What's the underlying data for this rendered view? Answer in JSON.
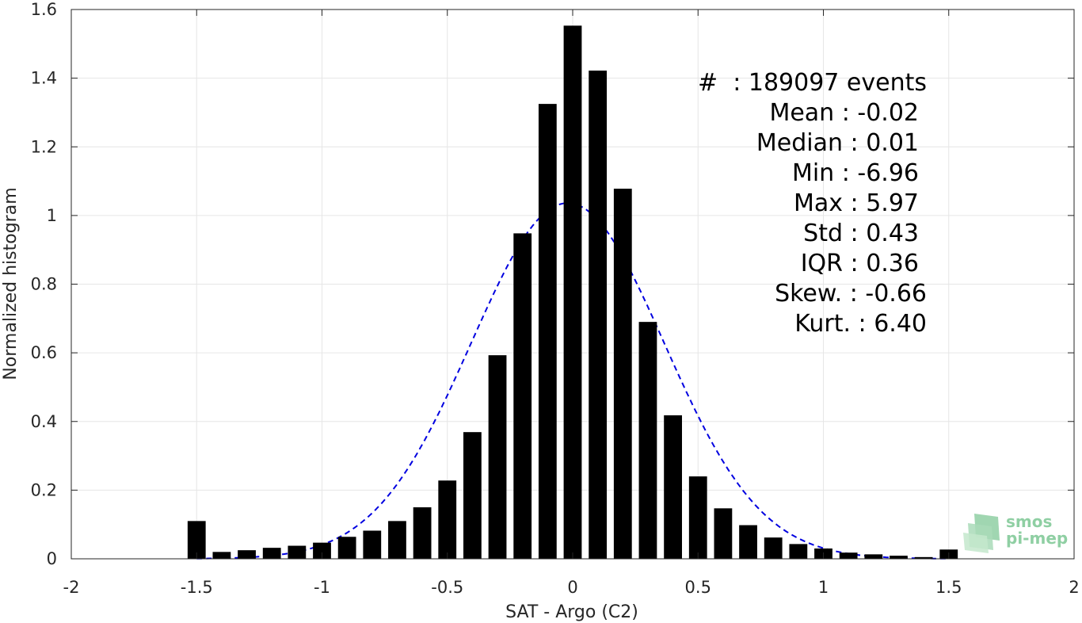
{
  "chart_data": {
    "type": "bar",
    "xlabel": "SAT - Argo (C2)",
    "ylabel": "Normalized histogram",
    "xlim": [
      -2,
      2
    ],
    "ylim": [
      0,
      1.6
    ],
    "xticks": [
      -2,
      -1.5,
      -1,
      -0.5,
      0,
      0.5,
      1,
      1.5,
      2
    ],
    "xtick_labels": [
      "-2",
      "-1.5",
      "-1",
      "-0.5",
      "0",
      "0.5",
      "1",
      "1.5",
      "2"
    ],
    "yticks": [
      0,
      0.2,
      0.4,
      0.6,
      0.8,
      1,
      1.2,
      1.4,
      1.6
    ],
    "ytick_labels": [
      "0",
      "0.2",
      "0.4",
      "0.6",
      "0.8",
      "1",
      "1.2",
      "1.4",
      "1.6"
    ],
    "grid": true,
    "bar_color": "#000000",
    "bin_width": 0.1,
    "bins": [
      -1.5,
      -1.4,
      -1.3,
      -1.2,
      -1.1,
      -1.0,
      -0.9,
      -0.8,
      -0.7,
      -0.6,
      -0.5,
      -0.4,
      -0.3,
      -0.2,
      -0.1,
      0.0,
      0.1,
      0.2,
      0.3,
      0.4,
      0.5,
      0.6,
      0.7,
      0.8,
      0.9,
      1.0,
      1.1,
      1.2,
      1.3,
      1.4,
      1.5
    ],
    "values": [
      0.11,
      0.02,
      0.025,
      0.032,
      0.038,
      0.047,
      0.064,
      0.082,
      0.11,
      0.15,
      0.228,
      0.369,
      0.593,
      0.948,
      1.325,
      1.553,
      1.422,
      1.078,
      0.69,
      0.418,
      0.24,
      0.147,
      0.098,
      0.062,
      0.043,
      0.03,
      0.018,
      0.013,
      0.009,
      0.005,
      0.027
    ],
    "fit_curve": {
      "type": "gaussian",
      "mean": -0.02,
      "std": 0.385,
      "color": "#0000e0",
      "style": "dashed"
    },
    "stats_lines": [
      "#  : 189097 events",
      "Mean : -0.02",
      "Median : 0.01",
      "Min : -6.96",
      "Max : 5.97",
      "Std : 0.43",
      "IQR : 0.36",
      "Skew. : -0.66",
      "Kurt. : 6.40"
    ]
  },
  "logo": {
    "line1": "smos",
    "line2": "pi-mep",
    "color": "#8fcfa3"
  }
}
